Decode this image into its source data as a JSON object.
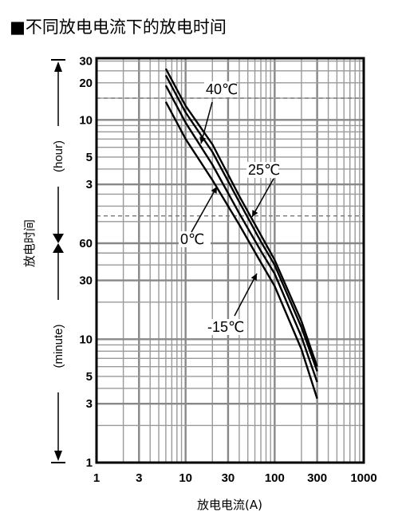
{
  "chart_data": {
    "type": "line",
    "title": "■不同放电电流下的放电时间",
    "xlabel": "放电电流(A)",
    "ylabel": "放电时间",
    "x_scale": "log",
    "xlim": [
      1,
      1000
    ],
    "x_ticks": [
      "1",
      "3",
      "10",
      "30",
      "100",
      "300",
      "1000"
    ],
    "y_ticks": {
      "hour": [
        "30",
        "20",
        "10",
        "5",
        "3"
      ],
      "minute": [
        "60",
        "30",
        "10",
        "5",
        "3",
        "1"
      ]
    },
    "y_units": {
      "hour": "(hour)",
      "minute": "(minute)"
    },
    "series": [
      {
        "name": "40℃",
        "x": [
          6,
          10,
          20,
          40,
          70,
          100,
          200,
          300
        ],
        "y_min": [
          1560,
          780,
          380,
          145,
          70,
          44,
          14,
          6
        ]
      },
      {
        "name": "25℃",
        "x": [
          6,
          10,
          20,
          40,
          70,
          100,
          200,
          300
        ],
        "y_min": [
          1380,
          690,
          330,
          130,
          62,
          40,
          12.5,
          5.5
        ]
      },
      {
        "name": "0℃",
        "x": [
          6,
          10,
          20,
          40,
          70,
          100,
          200,
          300
        ],
        "y_min": [
          1140,
          570,
          260,
          105,
          52,
          34,
          10.5,
          4.5
        ]
      },
      {
        "name": "-15℃",
        "x": [
          6,
          10,
          20,
          40,
          70,
          100,
          200,
          300
        ],
        "y_min": [
          840,
          420,
          195,
          85,
          42,
          27,
          8.3,
          3.3
        ]
      }
    ],
    "grid": true,
    "dashed_guides_min": [
      900,
      100
    ]
  }
}
